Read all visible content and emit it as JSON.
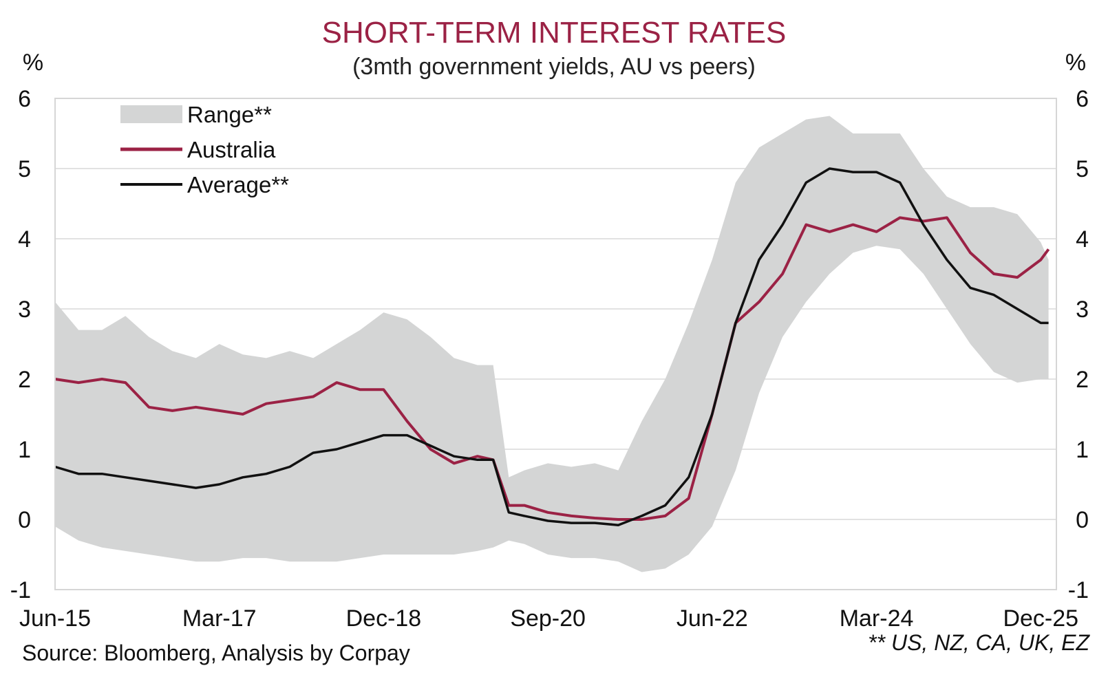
{
  "chart_data": {
    "type": "area",
    "title": "SHORT-TERM INTEREST RATES",
    "subtitle": "(3mth government yields, AU vs peers)",
    "y_unit_left": "%",
    "y_unit_right": "%",
    "ylim": [
      -1,
      6
    ],
    "y_ticks": [
      6,
      5,
      4,
      3,
      2,
      1,
      0,
      -1
    ],
    "xlim": [
      "2015-06",
      "2026-02"
    ],
    "x_ticks": [
      {
        "date": "2015-06",
        "label": "Jun-15"
      },
      {
        "date": "2017-03",
        "label": "Mar-17"
      },
      {
        "date": "2018-12",
        "label": "Dec-18"
      },
      {
        "date": "2020-09",
        "label": "Sep-20"
      },
      {
        "date": "2022-06",
        "label": "Jun-22"
      },
      {
        "date": "2024-03",
        "label": "Mar-24"
      },
      {
        "date": "2025-12",
        "label": "Dec-25"
      }
    ],
    "grid": "horizontal",
    "legend_position": "top-left",
    "colors": {
      "range": "#d4d5d5",
      "australia": "#9b2245",
      "average": "#111111"
    },
    "series": [
      {
        "name": "Range**",
        "kind": "band",
        "x": [
          "2015-06",
          "2015-09",
          "2015-12",
          "2016-03",
          "2016-06",
          "2016-09",
          "2016-12",
          "2017-03",
          "2017-06",
          "2017-09",
          "2017-12",
          "2018-03",
          "2018-06",
          "2018-09",
          "2018-12",
          "2019-03",
          "2019-06",
          "2019-09",
          "2019-12",
          "2020-02",
          "2020-04",
          "2020-06",
          "2020-09",
          "2020-12",
          "2021-03",
          "2021-06",
          "2021-09",
          "2021-12",
          "2022-03",
          "2022-06",
          "2022-09",
          "2022-12",
          "2023-03",
          "2023-06",
          "2023-09",
          "2023-12",
          "2024-03",
          "2024-06",
          "2024-09",
          "2024-12",
          "2025-03",
          "2025-06",
          "2025-09",
          "2025-12",
          "2026-01"
        ],
        "low": [
          -0.1,
          -0.3,
          -0.4,
          -0.45,
          -0.5,
          -0.55,
          -0.6,
          -0.6,
          -0.55,
          -0.55,
          -0.6,
          -0.6,
          -0.6,
          -0.55,
          -0.5,
          -0.5,
          -0.5,
          -0.5,
          -0.45,
          -0.4,
          -0.3,
          -0.35,
          -0.5,
          -0.55,
          -0.55,
          -0.6,
          -0.75,
          -0.7,
          -0.5,
          -0.1,
          0.7,
          1.8,
          2.6,
          3.1,
          3.5,
          3.8,
          3.9,
          3.85,
          3.5,
          3.0,
          2.5,
          2.1,
          1.95,
          2.0,
          2.0
        ],
        "high": [
          3.1,
          2.7,
          2.7,
          2.9,
          2.6,
          2.4,
          2.3,
          2.5,
          2.35,
          2.3,
          2.4,
          2.3,
          2.5,
          2.7,
          2.95,
          2.85,
          2.6,
          2.3,
          2.2,
          2.2,
          0.6,
          0.7,
          0.8,
          0.75,
          0.8,
          0.7,
          1.4,
          2.0,
          2.8,
          3.7,
          4.8,
          5.3,
          5.5,
          5.7,
          5.75,
          5.5,
          5.5,
          5.5,
          5.0,
          4.6,
          4.45,
          4.45,
          4.35,
          3.95,
          3.7
        ]
      },
      {
        "name": "Australia",
        "kind": "line",
        "x": [
          "2015-06",
          "2015-09",
          "2015-12",
          "2016-03",
          "2016-06",
          "2016-09",
          "2016-12",
          "2017-03",
          "2017-06",
          "2017-09",
          "2017-12",
          "2018-03",
          "2018-06",
          "2018-09",
          "2018-12",
          "2019-03",
          "2019-06",
          "2019-09",
          "2019-12",
          "2020-02",
          "2020-04",
          "2020-06",
          "2020-09",
          "2020-12",
          "2021-03",
          "2021-06",
          "2021-09",
          "2021-12",
          "2022-03",
          "2022-06",
          "2022-09",
          "2022-12",
          "2023-03",
          "2023-06",
          "2023-09",
          "2023-12",
          "2024-03",
          "2024-06",
          "2024-09",
          "2024-12",
          "2025-03",
          "2025-06",
          "2025-09",
          "2025-12",
          "2026-01"
        ],
        "values": [
          2.0,
          1.95,
          2.0,
          1.95,
          1.6,
          1.55,
          1.6,
          1.55,
          1.5,
          1.65,
          1.7,
          1.75,
          1.95,
          1.85,
          1.85,
          1.4,
          1.0,
          0.8,
          0.9,
          0.85,
          0.2,
          0.2,
          0.1,
          0.05,
          0.02,
          0.0,
          0.0,
          0.05,
          0.3,
          1.5,
          2.8,
          3.1,
          3.5,
          4.2,
          4.1,
          4.2,
          4.1,
          4.3,
          4.25,
          4.3,
          3.8,
          3.5,
          3.45,
          3.7,
          3.85
        ]
      },
      {
        "name": "Average**",
        "kind": "line",
        "x": [
          "2015-06",
          "2015-09",
          "2015-12",
          "2016-03",
          "2016-06",
          "2016-09",
          "2016-12",
          "2017-03",
          "2017-06",
          "2017-09",
          "2017-12",
          "2018-03",
          "2018-06",
          "2018-09",
          "2018-12",
          "2019-03",
          "2019-06",
          "2019-09",
          "2019-12",
          "2020-02",
          "2020-04",
          "2020-06",
          "2020-09",
          "2020-12",
          "2021-03",
          "2021-06",
          "2021-09",
          "2021-12",
          "2022-03",
          "2022-06",
          "2022-09",
          "2022-12",
          "2023-03",
          "2023-06",
          "2023-09",
          "2023-12",
          "2024-03",
          "2024-06",
          "2024-09",
          "2024-12",
          "2025-03",
          "2025-06",
          "2025-09",
          "2025-12",
          "2026-01"
        ],
        "values": [
          0.75,
          0.65,
          0.65,
          0.6,
          0.55,
          0.5,
          0.45,
          0.5,
          0.6,
          0.65,
          0.75,
          0.95,
          1.0,
          1.1,
          1.2,
          1.2,
          1.05,
          0.9,
          0.85,
          0.85,
          0.1,
          0.05,
          -0.02,
          -0.05,
          -0.05,
          -0.08,
          0.05,
          0.2,
          0.6,
          1.5,
          2.8,
          3.7,
          4.2,
          4.8,
          5.0,
          4.95,
          4.95,
          4.8,
          4.2,
          3.7,
          3.3,
          3.2,
          3.0,
          2.8,
          2.8
        ]
      }
    ],
    "source": "Source: Bloomberg, Analysis by Corpay",
    "footnote": "** US, NZ, CA, UK, EZ"
  }
}
